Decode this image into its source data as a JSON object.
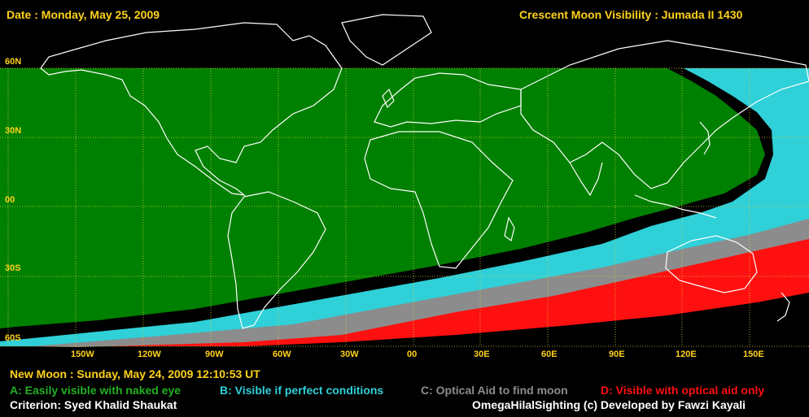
{
  "header": {
    "date_label": "Date : Monday, May 25, 2009",
    "title": "Crescent Moon Visibility : Jumada II  1430"
  },
  "latitude_labels": [
    "60N",
    "30N",
    "00",
    "30S",
    "60S"
  ],
  "longitude_labels": [
    "150W",
    "120W",
    "90W",
    "60W",
    "30W",
    "00",
    "30E",
    "60E",
    "90E",
    "120E",
    "150E"
  ],
  "footer": {
    "new_moon": "New Moon : Sunday, May 24, 2009  12:10:53  UT",
    "criterion": "Criterion: Syed Khalid Shaukat",
    "credit": "OmegaHilalSighting  (c) Developed by Fawzi Kayali"
  },
  "legend": [
    {
      "label": "A: Easily visible with naked eye",
      "color": "#008000"
    },
    {
      "label": "B: Visible if perfect conditions",
      "color": "#2fd0d8"
    },
    {
      "label": "C: Optical Aid to find moon",
      "color": "#8c8c8c"
    },
    {
      "label": "D: Visible with optical aid only",
      "color": "#ff1010"
    }
  ],
  "colors": {
    "zone_a": "#008000",
    "zone_b": "#2fd0d8",
    "zone_c": "#8c8c8c",
    "zone_d": "#ff1010",
    "grid": "#d8d040",
    "text": "#ffd21a"
  }
}
